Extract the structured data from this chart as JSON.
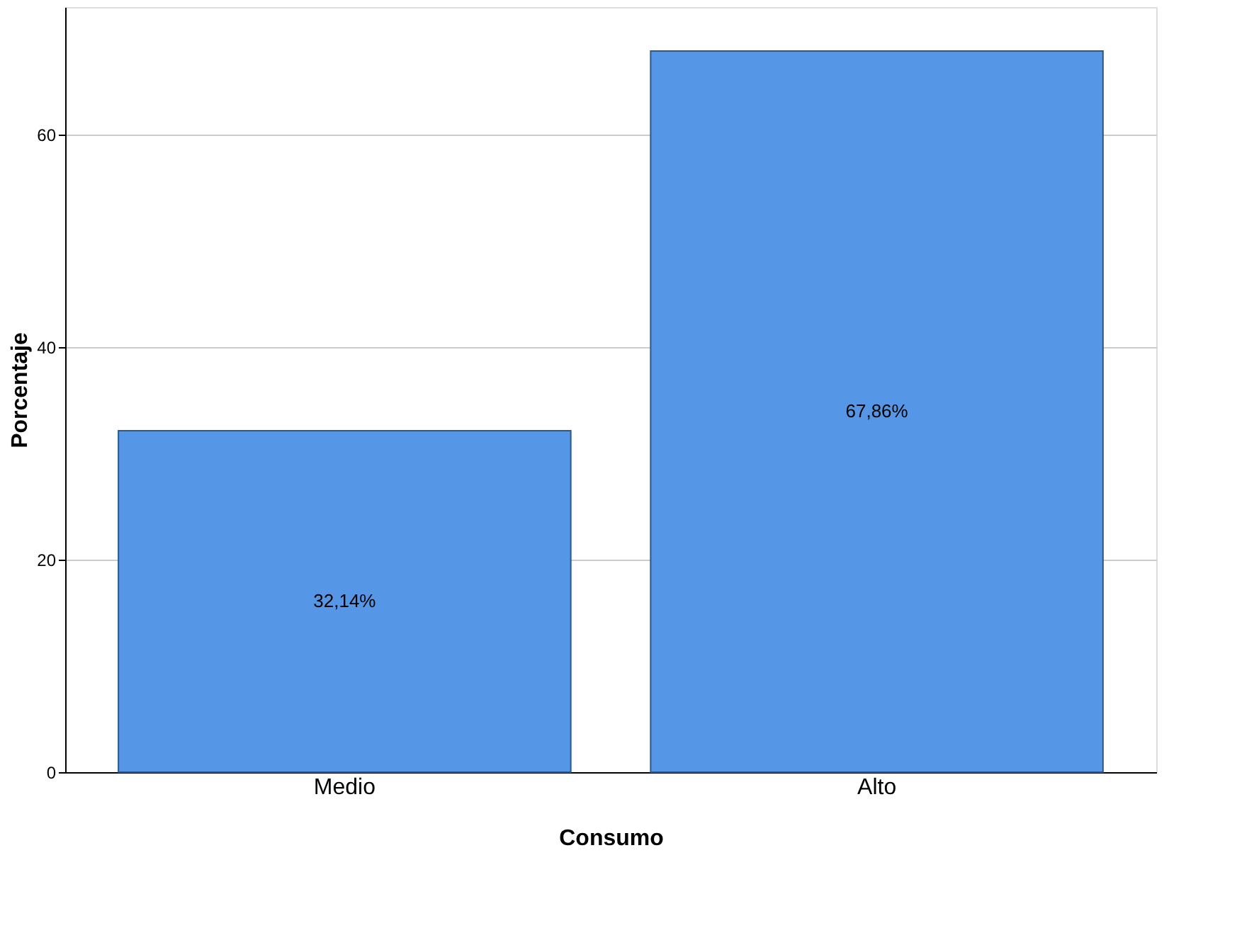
{
  "chart_data": {
    "type": "bar",
    "xlabel": "Consumo",
    "ylabel": "Porcentaje",
    "categories": [
      "Medio",
      "Alto"
    ],
    "values": [
      32.14,
      67.86
    ],
    "value_labels": [
      "32,14%",
      "67,86%"
    ],
    "color": "#5596e6",
    "ylim": [
      0,
      72
    ],
    "yticks": [
      0,
      20,
      40,
      60
    ],
    "grid": "y"
  }
}
